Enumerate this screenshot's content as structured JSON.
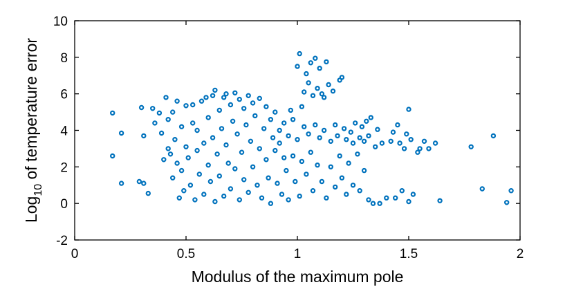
{
  "chart_data": {
    "type": "scatter",
    "title": "",
    "xlabel": "Modulus of the maximum pole",
    "ylabel": {
      "base": "Log",
      "subscript": "10",
      "rest": " of temperature error"
    },
    "xlim": [
      0,
      2
    ],
    "ylim": [
      -2,
      10
    ],
    "xticks": [
      0,
      0.5,
      1,
      1.5,
      2
    ],
    "xtick_labels": [
      "0",
      "0.5",
      "1",
      "1.5",
      "2"
    ],
    "yticks": [
      -2,
      0,
      2,
      4,
      6,
      8,
      10
    ],
    "ytick_labels": [
      "-2",
      "0",
      "2",
      "4",
      "6",
      "8",
      "10"
    ],
    "grid": false,
    "box": true,
    "marker": "open-circle",
    "color": "#0072BD",
    "points": [
      [
        0.17,
        4.95
      ],
      [
        0.17,
        2.6
      ],
      [
        0.21,
        3.85
      ],
      [
        0.21,
        1.1
      ],
      [
        0.29,
        1.2
      ],
      [
        0.3,
        5.25
      ],
      [
        0.31,
        3.7
      ],
      [
        0.31,
        1.1
      ],
      [
        0.33,
        0.55
      ],
      [
        0.35,
        5.2
      ],
      [
        0.36,
        4.4
      ],
      [
        0.38,
        4.95
      ],
      [
        0.39,
        3.85
      ],
      [
        0.4,
        2.4
      ],
      [
        0.41,
        5.8
      ],
      [
        0.42,
        3.0
      ],
      [
        0.42,
        4.6
      ],
      [
        0.43,
        2.7
      ],
      [
        0.44,
        1.4
      ],
      [
        0.44,
        5.0
      ],
      [
        0.45,
        3.5
      ],
      [
        0.46,
        2.2
      ],
      [
        0.46,
        5.6
      ],
      [
        0.47,
        0.3
      ],
      [
        0.48,
        4.2
      ],
      [
        0.48,
        1.8
      ],
      [
        0.49,
        0.7
      ],
      [
        0.5,
        5.35
      ],
      [
        0.5,
        3.1
      ],
      [
        0.51,
        2.5
      ],
      [
        0.52,
        1.0
      ],
      [
        0.53,
        4.4
      ],
      [
        0.53,
        5.4
      ],
      [
        0.54,
        0.2
      ],
      [
        0.55,
        2.9
      ],
      [
        0.55,
        4.0
      ],
      [
        0.56,
        1.6
      ],
      [
        0.57,
        5.6
      ],
      [
        0.58,
        3.3
      ],
      [
        0.58,
        0.5
      ],
      [
        0.59,
        5.8
      ],
      [
        0.6,
        2.1
      ],
      [
        0.6,
        4.7
      ],
      [
        0.61,
        1.2
      ],
      [
        0.62,
        5.9
      ],
      [
        0.62,
        3.6
      ],
      [
        0.63,
        0.1
      ],
      [
        0.63,
        6.2
      ],
      [
        0.64,
        2.7
      ],
      [
        0.65,
        5.1
      ],
      [
        0.65,
        1.5
      ],
      [
        0.66,
        4.1
      ],
      [
        0.67,
        5.8
      ],
      [
        0.67,
        0.4
      ],
      [
        0.68,
        3.2
      ],
      [
        0.68,
        6.0
      ],
      [
        0.69,
        2.2
      ],
      [
        0.7,
        5.4
      ],
      [
        0.7,
        0.8
      ],
      [
        0.71,
        4.5
      ],
      [
        0.72,
        6.05
      ],
      [
        0.72,
        1.9
      ],
      [
        0.73,
        3.8
      ],
      [
        0.74,
        5.7
      ],
      [
        0.74,
        0.2
      ],
      [
        0.75,
        2.8
      ],
      [
        0.76,
        5.2
      ],
      [
        0.76,
        1.3
      ],
      [
        0.77,
        4.3
      ],
      [
        0.78,
        5.9
      ],
      [
        0.78,
        0.6
      ],
      [
        0.79,
        3.4
      ],
      [
        0.8,
        5.5
      ],
      [
        0.8,
        2.0
      ],
      [
        0.81,
        4.8
      ],
      [
        0.82,
        1.0
      ],
      [
        0.83,
        5.75
      ],
      [
        0.83,
        3.0
      ],
      [
        0.84,
        0.3
      ],
      [
        0.85,
        4.1
      ],
      [
        0.86,
        5.3
      ],
      [
        0.86,
        2.4
      ],
      [
        0.87,
        1.4
      ],
      [
        0.88,
        4.6
      ],
      [
        0.88,
        0.0
      ],
      [
        0.89,
        3.6
      ],
      [
        0.9,
        2.9
      ],
      [
        0.9,
        5.0
      ],
      [
        0.91,
        1.1
      ],
      [
        0.92,
        4.0
      ],
      [
        0.92,
        3.3
      ],
      [
        0.93,
        0.5
      ],
      [
        0.94,
        2.5
      ],
      [
        0.94,
        4.4
      ],
      [
        0.95,
        1.8
      ],
      [
        0.96,
        3.7
      ],
      [
        0.96,
        0.2
      ],
      [
        0.97,
        5.1
      ],
      [
        0.98,
        2.6
      ],
      [
        0.98,
        4.6
      ],
      [
        0.99,
        1.2
      ],
      [
        1.0,
        3.5
      ],
      [
        1.0,
        7.5
      ],
      [
        1.01,
        8.2
      ],
      [
        1.01,
        0.4
      ],
      [
        1.02,
        2.3
      ],
      [
        1.02,
        5.3
      ],
      [
        1.03,
        4.2
      ],
      [
        1.03,
        6.1
      ],
      [
        1.04,
        1.6
      ],
      [
        1.04,
        7.1
      ],
      [
        1.05,
        3.8
      ],
      [
        1.05,
        6.6
      ],
      [
        1.06,
        2.8
      ],
      [
        1.06,
        7.7
      ],
      [
        1.07,
        0.7
      ],
      [
        1.07,
        5.9
      ],
      [
        1.08,
        7.95
      ],
      [
        1.08,
        4.3
      ],
      [
        1.09,
        6.3
      ],
      [
        1.09,
        2.1
      ],
      [
        1.1,
        7.4
      ],
      [
        1.1,
        3.6
      ],
      [
        1.11,
        1.2
      ],
      [
        1.11,
        6.0
      ],
      [
        1.12,
        5.8
      ],
      [
        1.12,
        4.0
      ],
      [
        1.13,
        7.75
      ],
      [
        1.13,
        0.3
      ],
      [
        1.14,
        6.5
      ],
      [
        1.15,
        3.4
      ],
      [
        1.15,
        2.0
      ],
      [
        1.16,
        6.15
      ],
      [
        1.17,
        4.3
      ],
      [
        1.17,
        0.9
      ],
      [
        1.18,
        3.7
      ],
      [
        1.19,
        6.75
      ],
      [
        1.19,
        2.6
      ],
      [
        1.2,
        6.9
      ],
      [
        1.2,
        1.4
      ],
      [
        1.21,
        4.1
      ],
      [
        1.22,
        3.5
      ],
      [
        1.22,
        0.5
      ],
      [
        1.23,
        2.2
      ],
      [
        1.24,
        3.9
      ],
      [
        1.25,
        1.0
      ],
      [
        1.25,
        3.3
      ],
      [
        1.26,
        4.4
      ],
      [
        1.27,
        2.7
      ],
      [
        1.28,
        3.6
      ],
      [
        1.28,
        0.7
      ],
      [
        1.29,
        4.2
      ],
      [
        1.3,
        1.8
      ],
      [
        1.3,
        3.4
      ],
      [
        1.31,
        4.5
      ],
      [
        1.32,
        0.2
      ],
      [
        1.32,
        3.7
      ],
      [
        1.33,
        4.7
      ],
      [
        1.34,
        0.0
      ],
      [
        1.35,
        3.1
      ],
      [
        1.36,
        4.05
      ],
      [
        1.37,
        0.0
      ],
      [
        1.38,
        3.3
      ],
      [
        1.4,
        0.3
      ],
      [
        1.42,
        3.4
      ],
      [
        1.43,
        3.9
      ],
      [
        1.44,
        0.3
      ],
      [
        1.45,
        4.3
      ],
      [
        1.46,
        3.3
      ],
      [
        1.47,
        0.7
      ],
      [
        1.48,
        3.0
      ],
      [
        1.49,
        3.8
      ],
      [
        1.5,
        5.15
      ],
      [
        1.5,
        0.1
      ],
      [
        1.51,
        3.5
      ],
      [
        1.52,
        0.5
      ],
      [
        1.54,
        2.8
      ],
      [
        1.55,
        3.0
      ],
      [
        1.57,
        3.4
      ],
      [
        1.59,
        3.0
      ],
      [
        1.62,
        3.3
      ],
      [
        1.64,
        0.15
      ],
      [
        1.78,
        3.1
      ],
      [
        1.83,
        0.8
      ],
      [
        1.88,
        3.7
      ],
      [
        1.94,
        0.05
      ],
      [
        1.96,
        0.7
      ]
    ]
  }
}
